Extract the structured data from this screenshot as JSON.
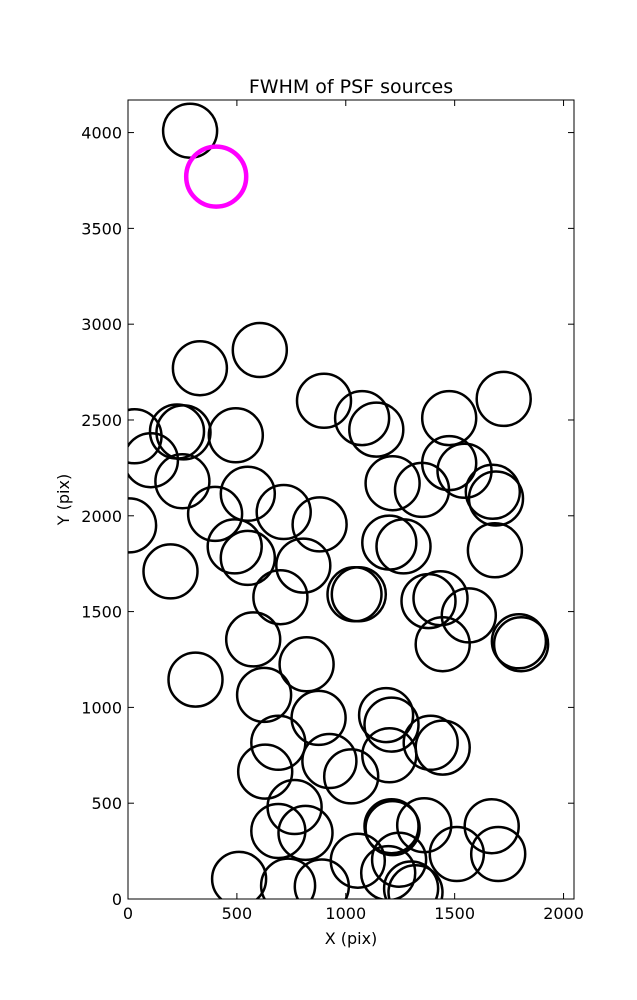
{
  "chart_data": {
    "type": "scatter",
    "title": "FWHM of PSF sources",
    "xlabel": "X (pix)",
    "ylabel": "Y (pix)",
    "xlim": [
      0,
      2048
    ],
    "ylim": [
      0,
      4170
    ],
    "xticks": [
      0,
      500,
      1000,
      1500,
      2000
    ],
    "yticks": [
      0,
      500,
      1000,
      1500,
      2000,
      2500,
      3000,
      3500,
      4000
    ],
    "grid": false,
    "marker": "open circle",
    "series": [
      {
        "color": "#000000",
        "points": [
          [
            285,
            4010
          ],
          [
            330,
            2770
          ],
          [
            605,
            2865
          ],
          [
            900,
            2600
          ],
          [
            1075,
            2510
          ],
          [
            1140,
            2450
          ],
          [
            1475,
            2510
          ],
          [
            1725,
            2610
          ],
          [
            30,
            2415
          ],
          [
            105,
            2290
          ],
          [
            225,
            2440
          ],
          [
            255,
            2435
          ],
          [
            495,
            2420
          ],
          [
            250,
            2180
          ],
          [
            400,
            2010
          ],
          [
            550,
            2115
          ],
          [
            715,
            2020
          ],
          [
            880,
            1955
          ],
          [
            5,
            1950
          ],
          [
            490,
            1840
          ],
          [
            550,
            1780
          ],
          [
            805,
            1740
          ],
          [
            195,
            1710
          ],
          [
            700,
            1575
          ],
          [
            1215,
            2170
          ],
          [
            1350,
            2135
          ],
          [
            1475,
            2275
          ],
          [
            1545,
            2235
          ],
          [
            1675,
            2125
          ],
          [
            1690,
            2090
          ],
          [
            1200,
            1860
          ],
          [
            1265,
            1840
          ],
          [
            1685,
            1820
          ],
          [
            1040,
            1590
          ],
          [
            1060,
            1590
          ],
          [
            1380,
            1555
          ],
          [
            1435,
            1570
          ],
          [
            1565,
            1480
          ],
          [
            1445,
            1330
          ],
          [
            1795,
            1345
          ],
          [
            1805,
            1330
          ],
          [
            575,
            1355
          ],
          [
            820,
            1225
          ],
          [
            310,
            1145
          ],
          [
            625,
            1065
          ],
          [
            875,
            945
          ],
          [
            1185,
            960
          ],
          [
            1210,
            910
          ],
          [
            690,
            815
          ],
          [
            1200,
            750
          ],
          [
            1390,
            815
          ],
          [
            1445,
            790
          ],
          [
            630,
            665
          ],
          [
            925,
            720
          ],
          [
            1025,
            640
          ],
          [
            765,
            480
          ],
          [
            690,
            355
          ],
          [
            815,
            345
          ],
          [
            1210,
            380
          ],
          [
            1215,
            370
          ],
          [
            1360,
            385
          ],
          [
            1245,
            205
          ],
          [
            1055,
            200
          ],
          [
            1195,
            135
          ],
          [
            1300,
            55
          ],
          [
            1320,
            35
          ],
          [
            510,
            105
          ],
          [
            735,
            70
          ],
          [
            890,
            65
          ],
          [
            1510,
            235
          ],
          [
            1670,
            380
          ],
          [
            1700,
            235
          ]
        ]
      },
      {
        "color": "#ff00ff",
        "points": [
          [
            405,
            3770
          ]
        ]
      }
    ]
  }
}
